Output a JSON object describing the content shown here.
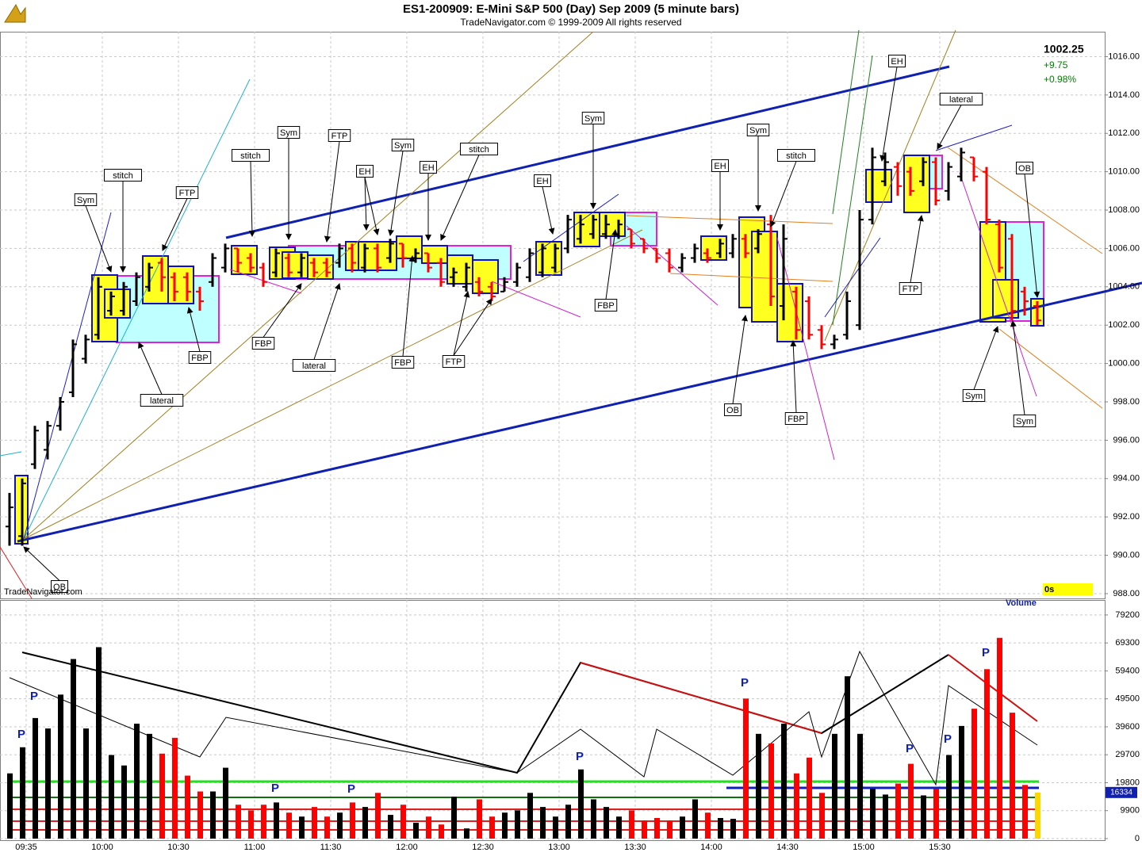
{
  "chart_data": [
    {
      "type": "ohlc",
      "title": "ES1-200909:  E-Mini S&P 500 (Day) Sep 2009  (5 minute bars)",
      "subtitle": "TradeNavigator.com © 1999-2009 All rights reserved",
      "watermark": "TradeNavigator.com",
      "change": "+9.75",
      "change_pct": "+0.98%",
      "timer": "0s",
      "up_color": "#000000",
      "down_color": "#ff0000",
      "grid": true,
      "ylim": [
        987.75,
        1017.3
      ],
      "yticks": [
        {
          "value": 988,
          "label": "988.00"
        },
        {
          "value": 990,
          "label": "990.00"
        },
        {
          "value": 992,
          "label": "992.00"
        },
        {
          "value": 994,
          "label": "994.00"
        },
        {
          "value": 996,
          "label": "996.00"
        },
        {
          "value": 998,
          "label": "998.00"
        },
        {
          "value": 1000,
          "label": "1000.00"
        },
        {
          "value": 1002,
          "label": "1002.00"
        },
        {
          "value": 1004,
          "label": "1004.00"
        },
        {
          "value": 1006,
          "label": "1006.00"
        },
        {
          "value": 1008,
          "label": "1008.00"
        },
        {
          "value": 1010,
          "label": "1010.00"
        },
        {
          "value": 1012,
          "label": "1012.00"
        },
        {
          "value": 1014,
          "label": "1014.00"
        },
        {
          "value": 1016,
          "label": "1016.00"
        }
      ],
      "open": [
        991.5,
        991.0,
        994.75,
        995.5,
        996.75,
        998.5,
        1000.25,
        1001.5,
        1002.75,
        1002.75,
        1003.25,
        1004.0,
        1005.25,
        1004.5,
        1004.5,
        1003.75,
        1004.25,
        1005.0,
        1006.0,
        1005.5,
        1005.0,
        1004.75,
        1005.5,
        1004.75,
        1005.25,
        1005.25,
        1005.25,
        1006.0,
        1005.0,
        1006.0,
        1005.5,
        1006.25,
        1005.5,
        1005.75,
        1005.25,
        1004.5,
        1004.0,
        1004.25,
        1004.0,
        1003.75,
        1004.25,
        1004.5,
        1004.75,
        1005.0,
        1006.0,
        1006.5,
        1006.75,
        1006.75,
        1006.75,
        1007.0,
        1006.5,
        1006.0,
        1005.75,
        1005.0,
        1005.5,
        1005.75,
        1005.75,
        1005.75,
        1006.5,
        1006.0,
        1007.25,
        1003.0,
        1003.75,
        1003.25,
        1001.75,
        1001.0,
        1001.5,
        1002.0,
        1007.5,
        1009.5,
        1010.25,
        1010.0,
        1009.5,
        1010.5,
        1009.0,
        1009.75,
        1010.75,
        1010.0,
        1007.25,
        1006.5,
        1003.75,
        1003.0
      ],
      "high": [
        993.25,
        994.0,
        996.75,
        997.0,
        998.25,
        1001.25,
        1001.5,
        1004.5,
        1003.75,
        1004.25,
        1004.75,
        1005.25,
        1005.5,
        1004.75,
        1004.75,
        1004.0,
        1005.75,
        1006.25,
        1006.0,
        1005.75,
        1005.25,
        1006.0,
        1005.75,
        1005.75,
        1005.5,
        1005.5,
        1006.25,
        1006.25,
        1006.25,
        1006.25,
        1006.5,
        1006.25,
        1006.0,
        1005.75,
        1005.5,
        1005.0,
        1005.25,
        1004.5,
        1004.25,
        1004.5,
        1005.25,
        1006.0,
        1006.25,
        1006.25,
        1007.75,
        1007.75,
        1007.75,
        1007.75,
        1007.5,
        1007.0,
        1006.5,
        1006.0,
        1006.0,
        1005.75,
        1006.25,
        1006.0,
        1006.5,
        1006.75,
        1006.75,
        1007.0,
        1007.75,
        1007.25,
        1004.0,
        1003.5,
        1002.0,
        1001.5,
        1003.75,
        1008.0,
        1011.25,
        1011.0,
        1010.5,
        1010.25,
        1010.75,
        1010.75,
        1010.5,
        1011.25,
        1010.75,
        1010.25,
        1007.5,
        1006.75,
        1004.0,
        1003.25
      ],
      "low": [
        990.5,
        990.5,
        994.5,
        995.0,
        996.5,
        998.25,
        1000.0,
        1001.25,
        1002.5,
        1002.5,
        1003.0,
        1003.75,
        1003.75,
        1003.25,
        1003.25,
        1002.75,
        1004.0,
        1004.75,
        1004.75,
        1004.75,
        1004.0,
        1004.5,
        1004.5,
        1004.5,
        1004.5,
        1004.5,
        1005.0,
        1004.75,
        1004.75,
        1004.75,
        1005.25,
        1005.0,
        1005.25,
        1004.75,
        1004.0,
        1004.0,
        1003.75,
        1003.5,
        1003.25,
        1003.75,
        1004.0,
        1004.25,
        1004.5,
        1004.75,
        1005.75,
        1006.25,
        1006.5,
        1006.5,
        1006.5,
        1006.0,
        1005.75,
        1005.25,
        1004.75,
        1004.75,
        1005.25,
        1005.25,
        1005.5,
        1005.5,
        1005.5,
        1005.75,
        1003.0,
        1002.25,
        1001.25,
        1001.25,
        1000.75,
        1000.75,
        1001.25,
        1001.75,
        1007.25,
        1009.25,
        1008.75,
        1008.75,
        1009.25,
        1008.25,
        1008.5,
        1009.5,
        1009.5,
        1007.25,
        1004.75,
        1002.25,
        1002.5,
        1002.0
      ],
      "close": [
        992.5,
        993.75,
        996.5,
        996.75,
        998.0,
        1001.0,
        1001.25,
        1004.0,
        1003.5,
        1004.0,
        1004.5,
        1005.0,
        1004.5,
        1003.75,
        1003.75,
        1003.25,
        1005.5,
        1006.0,
        1005.25,
        1005.0,
        1004.25,
        1005.75,
        1004.75,
        1005.5,
        1004.75,
        1004.75,
        1006.0,
        1005.25,
        1006.0,
        1005.0,
        1006.25,
        1005.5,
        1005.75,
        1005.0,
        1004.25,
        1004.75,
        1005.0,
        1003.75,
        1003.5,
        1004.25,
        1005.0,
        1005.75,
        1006.0,
        1006.0,
        1007.5,
        1007.25,
        1007.5,
        1007.25,
        1007.25,
        1006.25,
        1006.0,
        1005.5,
        1005.0,
        1005.5,
        1006.0,
        1005.5,
        1006.25,
        1006.5,
        1005.75,
        1006.75,
        1003.5,
        1006.5,
        1001.75,
        1001.5,
        1001.0,
        1001.25,
        1003.25,
        1007.5,
        1010.75,
        1010.5,
        1009.25,
        1009.0,
        1010.5,
        1008.5,
        1010.25,
        1011.0,
        1009.75,
        1007.5,
        1005.0,
        1002.75,
        1003.25,
        1002.25
      ],
      "annotations": [
        "OB",
        "Sym",
        "stitch",
        "FTP",
        "FBP",
        "lateral",
        "stitch",
        "Sym",
        "FBP",
        "FTP",
        "lateral",
        "EH",
        "Sym",
        "EH",
        "stitch",
        "FBP",
        "FTP",
        "EH",
        "Sym",
        "FBP",
        "EH",
        "Sym",
        "stitch",
        "OB",
        "FBP",
        "EH",
        "FTP",
        "lateral",
        "OB",
        "Sym",
        "Sym"
      ]
    },
    {
      "type": "bar",
      "title": "Volume",
      "grid": true,
      "categories": [
        null,
        "09:35",
        null,
        null,
        null,
        null,
        null,
        "10:00",
        null,
        null,
        null,
        null,
        null,
        "10:30",
        null,
        null,
        null,
        null,
        null,
        "11:00",
        null,
        null,
        null,
        null,
        null,
        "11:30",
        null,
        null,
        null,
        null,
        null,
        "12:00",
        null,
        null,
        null,
        null,
        null,
        "12:30",
        null,
        null,
        null,
        null,
        null,
        "13:00",
        null,
        null,
        null,
        null,
        null,
        "13:30",
        null,
        null,
        null,
        null,
        null,
        "14:00",
        null,
        null,
        null,
        null,
        null,
        "14:30",
        null,
        null,
        null,
        null,
        null,
        "15:00",
        null,
        null,
        null,
        null,
        null,
        "15:30",
        null,
        null,
        null,
        null,
        null,
        null,
        null,
        null
      ],
      "values": [
        23100,
        32350,
        42700,
        39000,
        51000,
        63600,
        39000,
        67800,
        29600,
        25900,
        40700,
        37100,
        30100,
        35700,
        22300,
        16700,
        16700,
        25100,
        12000,
        10000,
        12000,
        12800,
        9200,
        7800,
        11200,
        7800,
        9200,
        12800,
        11200,
        16200,
        8400,
        12000,
        5600,
        7800,
        5000,
        14800,
        3600,
        13900,
        7800,
        9200,
        10000,
        16200,
        11200,
        7800,
        12000,
        24500,
        13900,
        11200,
        7800,
        10000,
        6400,
        7300,
        6400,
        7800,
        13900,
        9200,
        7300,
        7000,
        49600,
        37100,
        33700,
        40700,
        23100,
        28700,
        16200,
        37100,
        57500,
        37100,
        17600,
        15600,
        19500,
        26500,
        15300,
        17600,
        29600,
        39900,
        46000,
        60000,
        71100,
        44600,
        19000,
        16334
      ],
      "ylim": [
        -560,
        84500
      ],
      "yticks": [
        0,
        9900,
        19800,
        29700,
        39600,
        49500,
        59400,
        69300,
        79200
      ],
      "markers": [
        "P",
        "P",
        "P",
        "P",
        "P",
        "P",
        "P",
        "P",
        "P"
      ]
    }
  ]
}
